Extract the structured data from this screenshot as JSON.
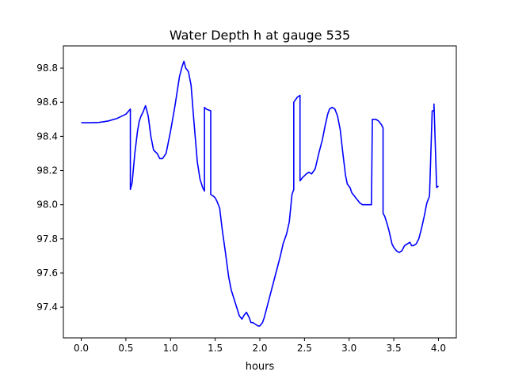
{
  "chart_data": {
    "type": "line",
    "title": "Water Depth h at gauge 535",
    "xlabel": "hours",
    "ylabel": "",
    "xlim": [
      -0.2,
      4.2
    ],
    "ylim": [
      97.22,
      98.93
    ],
    "xticks": [
      0.0,
      0.5,
      1.0,
      1.5,
      2.0,
      2.5,
      3.0,
      3.5,
      4.0
    ],
    "xtick_labels": [
      "0.0",
      "0.5",
      "1.0",
      "1.5",
      "2.0",
      "2.5",
      "3.0",
      "3.5",
      "4.0"
    ],
    "yticks": [
      97.4,
      97.6,
      97.8,
      98.0,
      98.2,
      98.4,
      98.6,
      98.8
    ],
    "ytick_labels": [
      "97.4",
      "97.6",
      "97.8",
      "98.0",
      "98.2",
      "98.4",
      "98.6",
      "98.8"
    ],
    "grid": false,
    "series": [
      {
        "color": "#0000ff",
        "x": [
          0.0,
          0.1,
          0.2,
          0.3,
          0.4,
          0.5,
          0.55,
          0.55,
          0.57,
          0.6,
          0.63,
          0.65,
          0.67,
          0.69,
          0.72,
          0.75,
          0.78,
          0.81,
          0.85,
          0.88,
          0.91,
          0.95,
          1.0,
          1.05,
          1.1,
          1.13,
          1.15,
          1.17,
          1.2,
          1.23,
          1.26,
          1.3,
          1.33,
          1.36,
          1.38,
          1.38,
          1.4,
          1.45,
          1.45,
          1.48,
          1.5,
          1.52,
          1.55,
          1.58,
          1.62,
          1.65,
          1.68,
          1.71,
          1.74,
          1.77,
          1.8,
          1.82,
          1.85,
          1.88,
          1.9,
          1.92,
          1.95,
          1.98,
          2.0,
          2.03,
          2.05,
          2.08,
          2.1,
          2.13,
          2.16,
          2.2,
          2.23,
          2.26,
          2.3,
          2.33,
          2.36,
          2.38,
          2.38,
          2.42,
          2.45,
          2.45,
          2.48,
          2.52,
          2.55,
          2.58,
          2.62,
          2.66,
          2.7,
          2.73,
          2.76,
          2.78,
          2.81,
          2.84,
          2.87,
          2.9,
          2.93,
          2.96,
          2.98,
          3.01,
          3.03,
          3.06,
          3.09,
          3.12,
          3.15,
          3.18,
          3.2,
          3.23,
          3.25,
          3.26,
          3.26,
          3.3,
          3.33,
          3.36,
          3.38,
          3.38,
          3.4,
          3.43,
          3.45,
          3.48,
          3.5,
          3.53,
          3.56,
          3.59,
          3.62,
          3.65,
          3.68,
          3.7,
          3.72,
          3.75,
          3.78,
          3.81,
          3.84,
          3.87,
          3.9,
          3.93,
          3.95,
          3.95,
          3.98,
          3.98,
          4.0
        ],
        "y": [
          98.48,
          98.48,
          98.482,
          98.49,
          98.505,
          98.53,
          98.56,
          98.09,
          98.13,
          98.3,
          98.43,
          98.49,
          98.52,
          98.54,
          98.58,
          98.52,
          98.4,
          98.32,
          98.3,
          98.27,
          98.27,
          98.3,
          98.43,
          98.58,
          98.75,
          98.81,
          98.84,
          98.8,
          98.78,
          98.7,
          98.5,
          98.25,
          98.15,
          98.1,
          98.08,
          98.57,
          98.56,
          98.55,
          98.06,
          98.05,
          98.04,
          98.02,
          97.98,
          97.85,
          97.7,
          97.58,
          97.5,
          97.45,
          97.4,
          97.35,
          97.33,
          97.35,
          97.37,
          97.34,
          97.31,
          97.31,
          97.3,
          97.29,
          97.29,
          97.31,
          97.34,
          97.4,
          97.44,
          97.5,
          97.56,
          97.64,
          97.7,
          97.77,
          97.83,
          97.9,
          98.06,
          98.09,
          98.6,
          98.63,
          98.64,
          98.14,
          98.16,
          98.18,
          98.19,
          98.18,
          98.21,
          98.3,
          98.38,
          98.46,
          98.53,
          98.56,
          98.57,
          98.56,
          98.52,
          98.44,
          98.3,
          98.17,
          98.12,
          98.1,
          98.07,
          98.05,
          98.03,
          98.01,
          98.0,
          98.0,
          98.0,
          98.0,
          98.0,
          98.5,
          98.5,
          98.5,
          98.49,
          98.47,
          98.45,
          97.95,
          97.93,
          97.88,
          97.84,
          97.77,
          97.75,
          97.73,
          97.72,
          97.73,
          97.76,
          97.77,
          97.78,
          97.76,
          97.76,
          97.77,
          97.8,
          97.86,
          97.93,
          98.01,
          98.05,
          98.55,
          98.55,
          98.59,
          98.1,
          98.1,
          98.11
        ]
      }
    ]
  }
}
